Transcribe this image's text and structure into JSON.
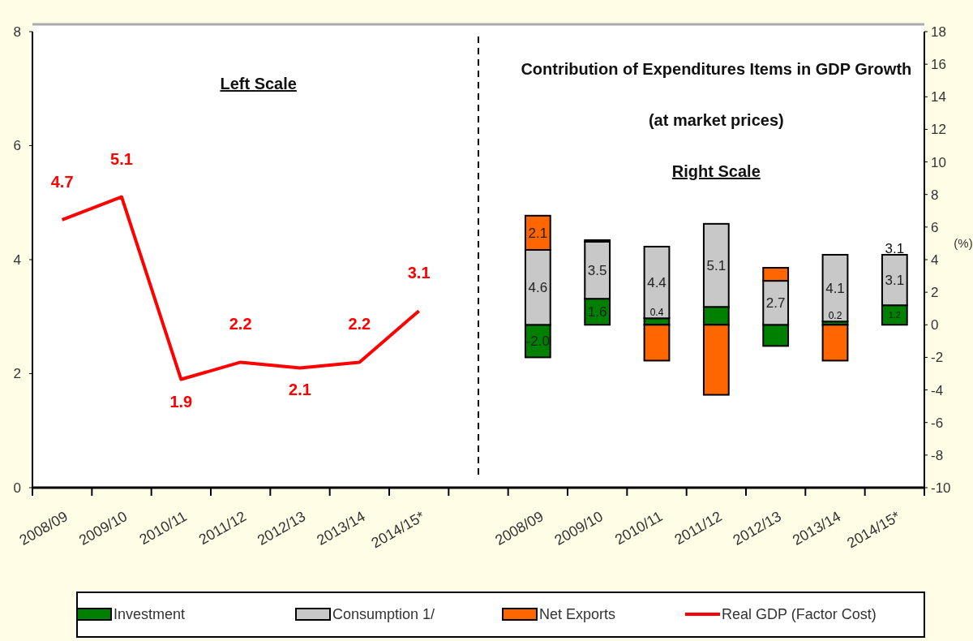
{
  "chart_data": {
    "type": "bar",
    "stacked": true,
    "title": "Contribution of Expenditures Items in GDP Growth",
    "subtitle": "(at market prices)",
    "y2label": "(%)",
    "annotations": [
      "Left Scale",
      "Right Scale",
      "3.1"
    ],
    "categories": [
      "2008/09",
      "2009/10",
      "2010/11",
      "2011/12",
      "2012/13",
      "2013/14",
      "2014/15*",
      null,
      "2008/09",
      "2009/10",
      "2010/11",
      "2011/12",
      "2012/13",
      "2013/14",
      "2014/15*"
    ],
    "series": [
      {
        "name": "Investment",
        "axis": "y2",
        "color": "#008000",
        "values": [
          null,
          null,
          null,
          null,
          null,
          null,
          null,
          null,
          -2.0,
          1.6,
          0.4,
          1.1,
          -1.3,
          0.2,
          1.2
        ],
        "value_labels": [
          null,
          null,
          null,
          null,
          null,
          null,
          null,
          null,
          "-2.0",
          "1.6",
          "0.4",
          null,
          null,
          "0.2",
          "1.2"
        ]
      },
      {
        "name": "Consumption 1/",
        "axis": "y2",
        "color": "#c8c8c8",
        "values": [
          null,
          null,
          null,
          null,
          null,
          null,
          null,
          null,
          4.6,
          3.5,
          4.4,
          5.1,
          2.7,
          4.1,
          3.1
        ],
        "value_labels": [
          null,
          null,
          null,
          null,
          null,
          null,
          null,
          null,
          "4.6",
          "3.5",
          "4.4",
          "5.1",
          "2.7",
          "4.1",
          "3.1"
        ]
      },
      {
        "name": "Net Exports",
        "axis": "y2",
        "color": "#ff6600",
        "values": [
          null,
          null,
          null,
          null,
          null,
          null,
          null,
          null,
          2.1,
          0.1,
          -2.2,
          -4.3,
          0.8,
          -2.2,
          null
        ],
        "value_labels": [
          null,
          null,
          null,
          null,
          null,
          null,
          null,
          null,
          "2.1",
          null,
          null,
          null,
          null,
          null,
          null
        ]
      },
      {
        "name": "Real GDP (Factor Cost)",
        "type": "line",
        "color": "#ff0000",
        "values": [
          4.7,
          5.1,
          1.9,
          2.2,
          2.1,
          2.2,
          3.1,
          null,
          null,
          null,
          null,
          null,
          null,
          null,
          null
        ],
        "value_labels": [
          "4.7",
          "5.1",
          "1.9",
          "2.2",
          "2.1",
          "2.2",
          "3.1",
          null,
          null,
          null,
          null,
          null,
          null,
          null,
          null
        ]
      }
    ],
    "ylim": [
      0,
      8
    ],
    "yticks": [
      0,
      2,
      4,
      6,
      8
    ],
    "y2lim": [
      -10,
      18
    ],
    "y2ticks": [
      -10,
      -8,
      -6,
      -4,
      -2,
      0,
      2,
      4,
      6,
      8,
      10,
      12,
      14,
      16,
      18
    ],
    "legend": "bottom"
  }
}
